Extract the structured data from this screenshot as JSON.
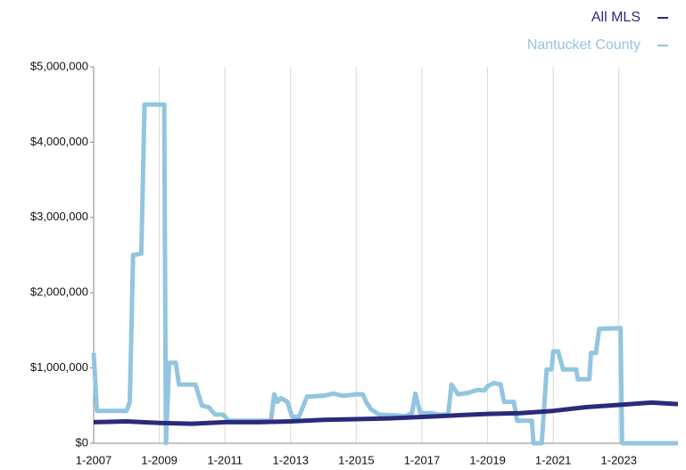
{
  "chart_data": {
    "type": "line",
    "xlim": [
      2007,
      2024.8
    ],
    "xticks": [
      {
        "value": 2007,
        "label": "1-2007"
      },
      {
        "value": 2009,
        "label": "1-2009"
      },
      {
        "value": 2011,
        "label": "1-2011"
      },
      {
        "value": 2013,
        "label": "1-2013"
      },
      {
        "value": 2015,
        "label": "1-2015"
      },
      {
        "value": 2017,
        "label": "1-2017"
      },
      {
        "value": 2019,
        "label": "1-2019"
      },
      {
        "value": 2021,
        "label": "1-2021"
      },
      {
        "value": 2023,
        "label": "1-2023"
      }
    ],
    "ylim": [
      0,
      5000000
    ],
    "yticks": [
      {
        "value": 0,
        "label": "$0"
      },
      {
        "value": 1000000,
        "label": "$1,000,000"
      },
      {
        "value": 2000000,
        "label": "$2,000,000"
      },
      {
        "value": 3000000,
        "label": "$3,000,000"
      },
      {
        "value": 4000000,
        "label": "$4,000,000"
      },
      {
        "value": 5000000,
        "label": "$5,000,000"
      }
    ],
    "grid": "x",
    "legend": "top-right",
    "series": [
      {
        "name": "All MLS",
        "color": "#2b2a7a",
        "x": [
          2007,
          2008,
          2009,
          2010,
          2011,
          2012,
          2013,
          2014,
          2015,
          2016,
          2017,
          2018,
          2019,
          2020,
          2021,
          2022,
          2023,
          2024,
          2024.8
        ],
        "values": [
          280000,
          290000,
          270000,
          260000,
          280000,
          280000,
          290000,
          310000,
          320000,
          330000,
          350000,
          370000,
          390000,
          400000,
          430000,
          480000,
          510000,
          540000,
          520000
        ]
      },
      {
        "name": "Nantucket County",
        "color": "#92c5e0",
        "x": [
          2007.0,
          2007.1,
          2008.0,
          2008.1,
          2008.2,
          2008.45,
          2008.55,
          2009.15,
          2009.2,
          2009.3,
          2009.5,
          2009.6,
          2010.1,
          2010.3,
          2010.5,
          2010.7,
          2010.95,
          2011.1,
          2012.4,
          2012.5,
          2012.6,
          2012.7,
          2012.9,
          2013.05,
          2013.25,
          2013.5,
          2014.0,
          2014.3,
          2014.6,
          2015.0,
          2015.2,
          2015.3,
          2015.45,
          2015.7,
          2016.2,
          2016.5,
          2016.7,
          2016.8,
          2016.95,
          2017.3,
          2017.5,
          2017.8,
          2017.9,
          2018.1,
          2018.4,
          2018.7,
          2018.9,
          2019.0,
          2019.2,
          2019.4,
          2019.5,
          2019.8,
          2019.9,
          2020.35,
          2020.4,
          2020.65,
          2020.8,
          2020.95,
          2021.0,
          2021.15,
          2021.3,
          2021.7,
          2021.75,
          2022.1,
          2022.15,
          2022.3,
          2022.4,
          2023.05,
          2023.1,
          2024.8
        ],
        "values": [
          1200000,
          430000,
          430000,
          550000,
          2500000,
          2520000,
          4500000,
          4500000,
          0,
          1070000,
          1070000,
          780000,
          780000,
          500000,
          480000,
          380000,
          380000,
          300000,
          300000,
          650000,
          550000,
          600000,
          550000,
          350000,
          350000,
          620000,
          630000,
          660000,
          630000,
          650000,
          650000,
          550000,
          450000,
          380000,
          370000,
          360000,
          400000,
          660000,
          400000,
          400000,
          380000,
          380000,
          780000,
          650000,
          670000,
          710000,
          700000,
          760000,
          800000,
          780000,
          550000,
          550000,
          300000,
          300000,
          0,
          0,
          980000,
          980000,
          1220000,
          1220000,
          980000,
          980000,
          850000,
          850000,
          1200000,
          1200000,
          1520000,
          1530000,
          0,
          0
        ]
      }
    ]
  }
}
